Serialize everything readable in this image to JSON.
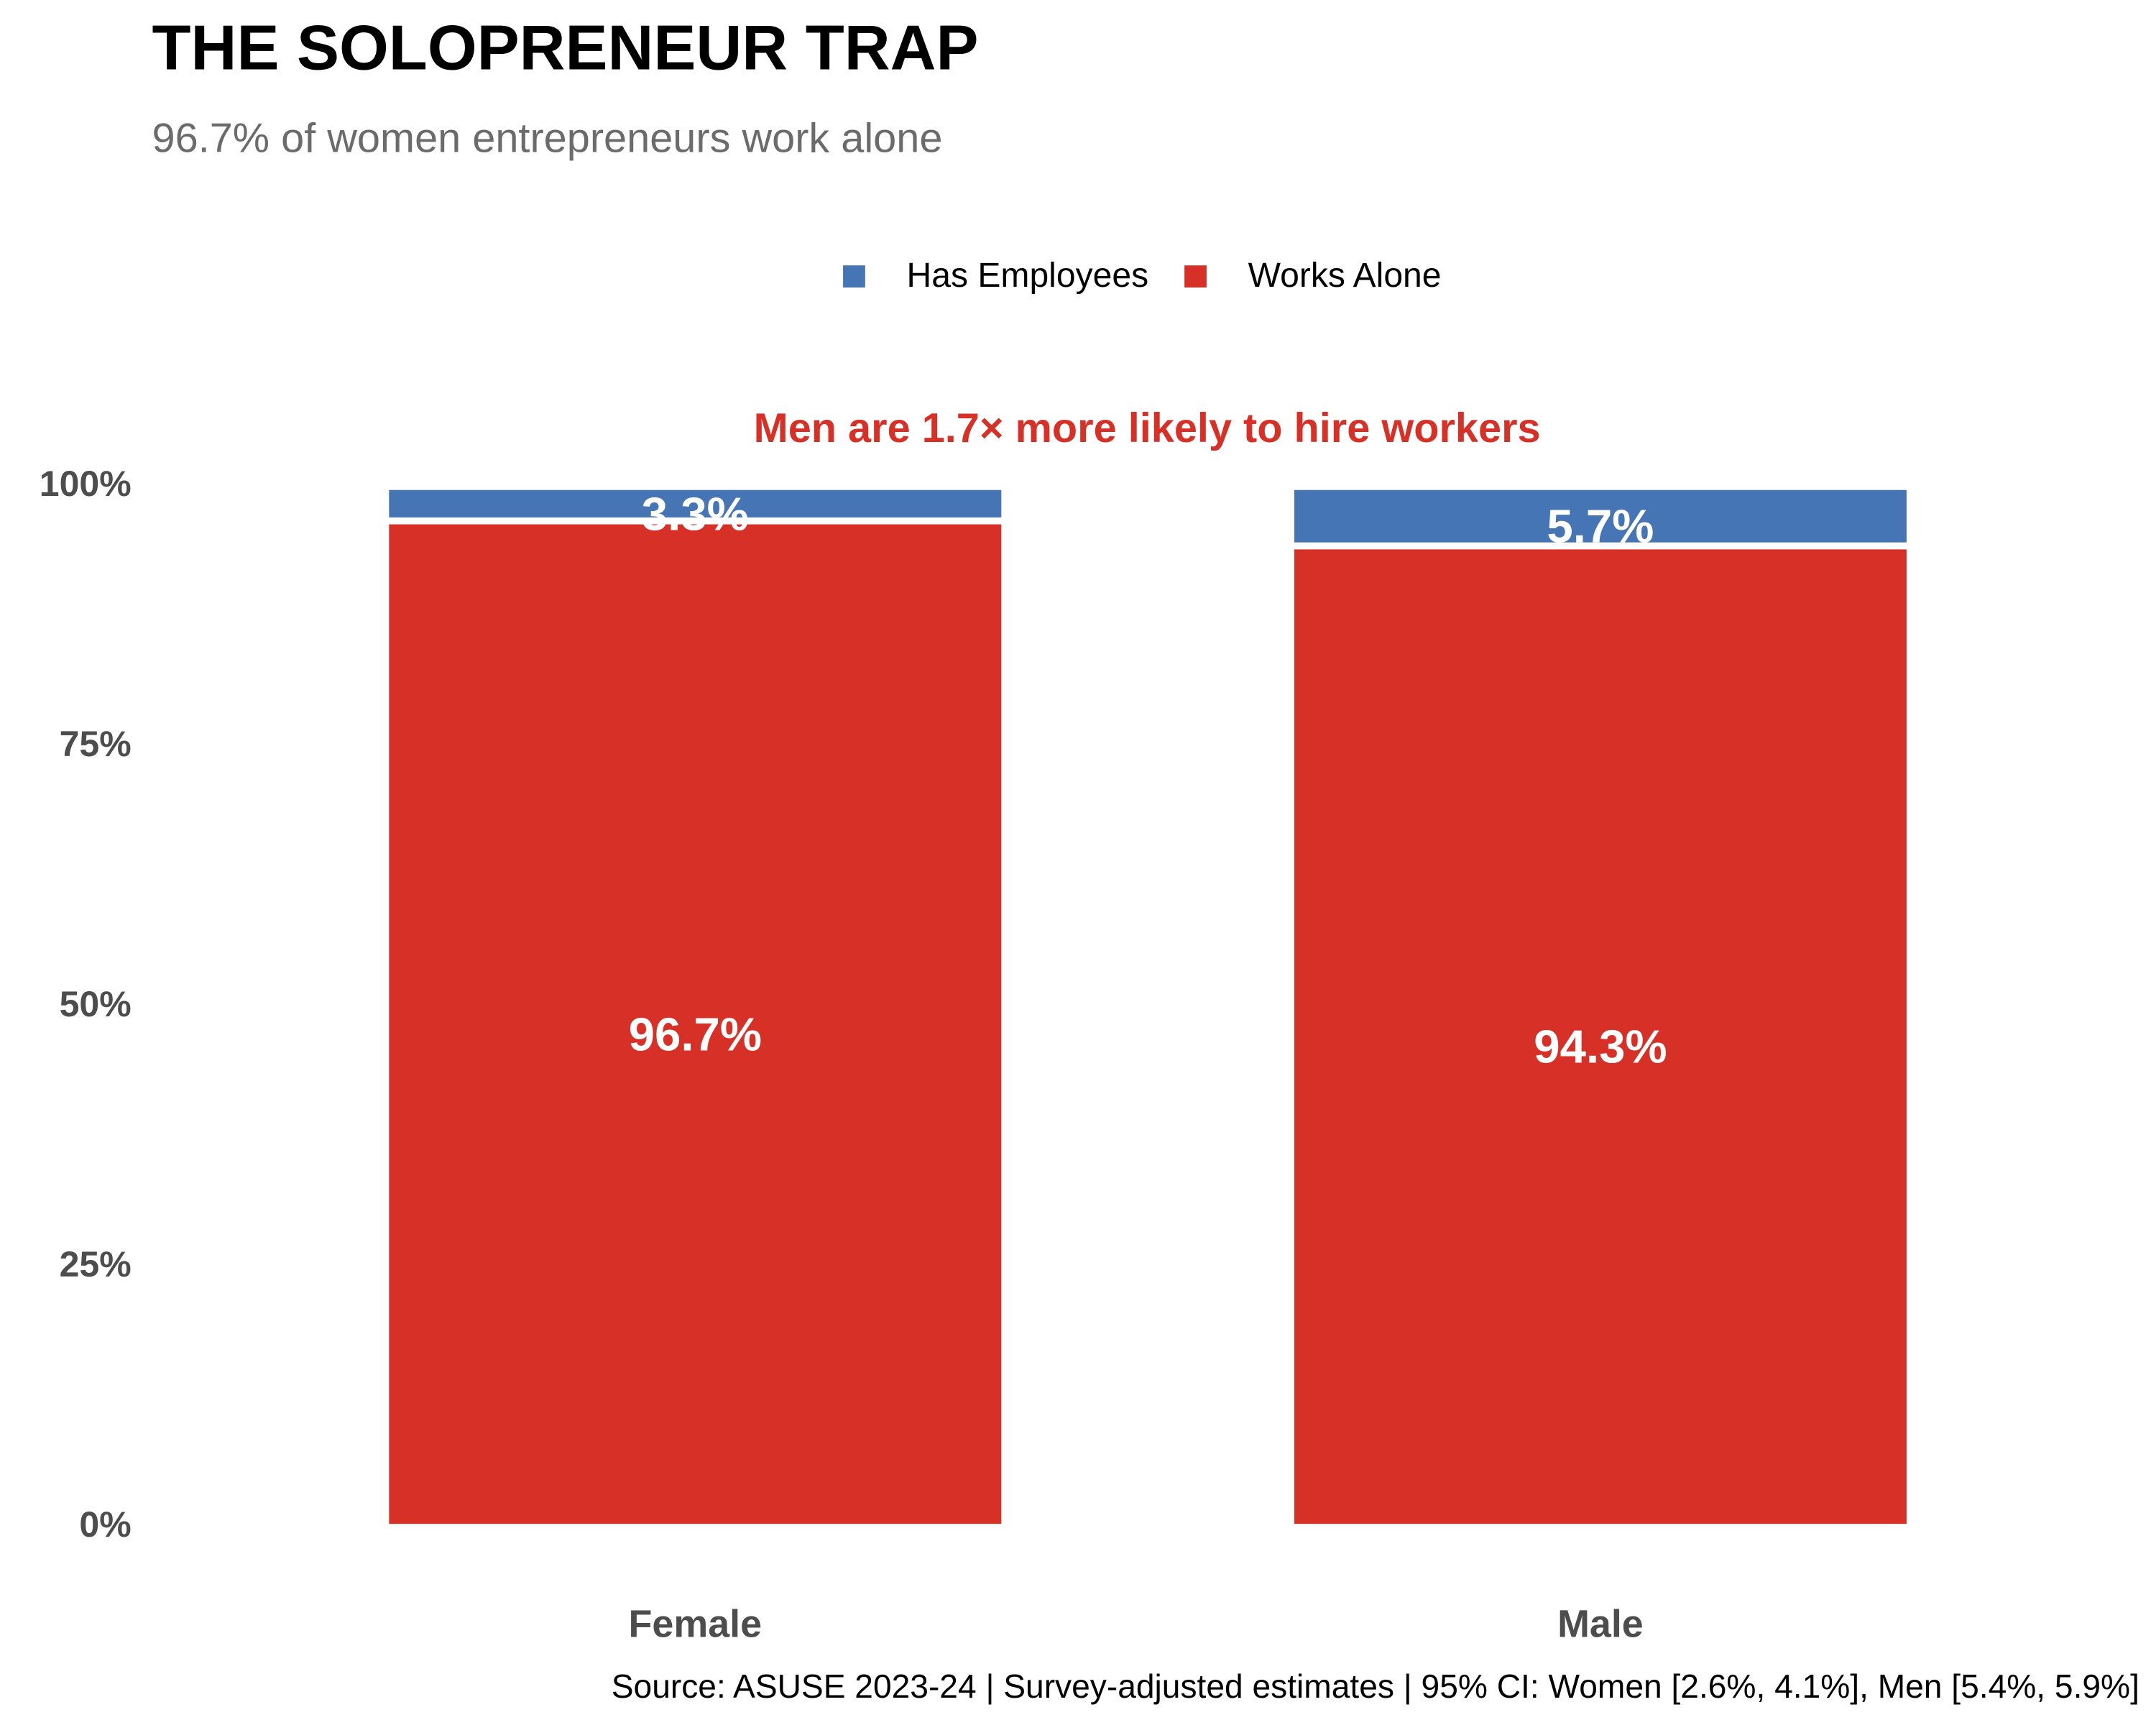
{
  "chart_data": {
    "type": "stacked_bar",
    "title": "THE SOLOPRENEUR TRAP",
    "subtitle": "96.7% of women entrepreneurs work alone",
    "annotation": "Men are 1.7× more likely to hire workers",
    "caption": "Source: ASUSE 2023-24 | Survey-adjusted estimates | 95% CI: Women [2.6%, 4.1%], Men [5.4%, 5.9%]",
    "categories": [
      "Female",
      "Male"
    ],
    "series": [
      {
        "name": "Has Employees",
        "color": "#4575b4",
        "values": [
          3.3,
          5.7
        ],
        "value_labels": [
          "3.3%",
          "5.7%"
        ]
      },
      {
        "name": "Works Alone",
        "color": "#d73027",
        "values": [
          96.7,
          94.3
        ],
        "value_labels": [
          "96.7%",
          "94.3%"
        ]
      }
    ],
    "ylim": [
      0,
      100
    ],
    "yticks": [
      {
        "value": 0,
        "label": "0%"
      },
      {
        "value": 25,
        "label": "25%"
      },
      {
        "value": 50,
        "label": "50%"
      },
      {
        "value": 75,
        "label": "75%"
      },
      {
        "value": 100,
        "label": "100%"
      }
    ],
    "grid": false,
    "legend": "top"
  }
}
